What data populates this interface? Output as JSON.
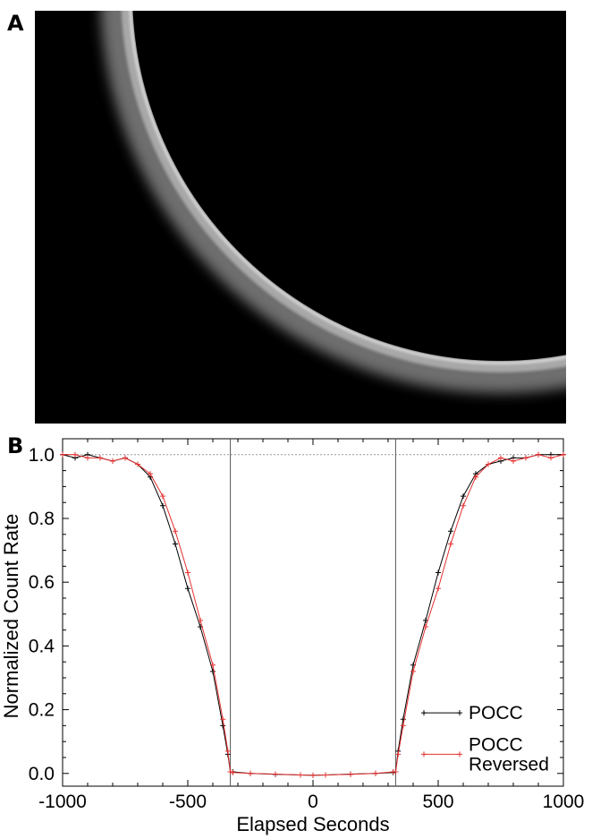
{
  "panels": {
    "a": {
      "label": "A"
    },
    "b": {
      "label": "B"
    }
  },
  "chart_data": {
    "type": "line",
    "xlabel": "Elapsed Seconds",
    "ylabel": "Normalized Count Rate",
    "xlim": [
      -1000,
      1000
    ],
    "ylim": [
      -0.04,
      1.05
    ],
    "xticks": [
      -1000,
      -500,
      0,
      500,
      1000
    ],
    "xtick_labels": [
      "-1000",
      "-500",
      "0",
      "500",
      "1000"
    ],
    "yticks": [
      0.0,
      0.2,
      0.4,
      0.6,
      0.8,
      1.0
    ],
    "ytick_labels": [
      "0.0",
      "0.2",
      "0.4",
      "0.6",
      "0.8",
      "1.0"
    ],
    "reference_line_y": 1.0,
    "vertical_lines_x": [
      -330,
      330
    ],
    "legend_placement": "lower-right",
    "x": [
      -1000,
      -950,
      -900,
      -850,
      -800,
      -750,
      -700,
      -650,
      -600,
      -550,
      -500,
      -450,
      -400,
      -360,
      -340,
      -330,
      -320,
      -250,
      -150,
      -50,
      0,
      50,
      150,
      250,
      320,
      330,
      340,
      360,
      400,
      450,
      500,
      550,
      600,
      650,
      700,
      750,
      800,
      850,
      900,
      950,
      1000
    ],
    "series": [
      {
        "name": "POCC",
        "color": "#000000",
        "values": [
          1.0,
          0.99,
          1.0,
          0.99,
          0.98,
          0.99,
          0.97,
          0.93,
          0.84,
          0.72,
          0.58,
          0.46,
          0.32,
          0.15,
          0.06,
          0.005,
          0.005,
          0.0,
          -0.003,
          -0.005,
          -0.006,
          -0.005,
          -0.002,
          0.0,
          0.003,
          0.005,
          0.07,
          0.17,
          0.34,
          0.48,
          0.63,
          0.76,
          0.87,
          0.94,
          0.97,
          0.98,
          0.99,
          0.99,
          1.0,
          1.0,
          1.0
        ]
      },
      {
        "name": "POCC\nReversed",
        "color": "#e53030",
        "values": [
          1.0,
          1.0,
          0.99,
          0.99,
          0.98,
          0.99,
          0.97,
          0.94,
          0.87,
          0.76,
          0.63,
          0.48,
          0.34,
          0.17,
          0.07,
          0.005,
          0.003,
          0.0,
          -0.002,
          -0.005,
          -0.006,
          -0.005,
          -0.003,
          0.0,
          0.005,
          0.005,
          0.06,
          0.15,
          0.32,
          0.46,
          0.58,
          0.72,
          0.84,
          0.93,
          0.97,
          0.99,
          0.98,
          0.99,
          1.0,
          0.99,
          1.0
        ]
      }
    ],
    "legend": [
      {
        "lines": [
          "POCC"
        ]
      },
      {
        "lines": [
          "POCC",
          "Reversed"
        ]
      }
    ]
  }
}
